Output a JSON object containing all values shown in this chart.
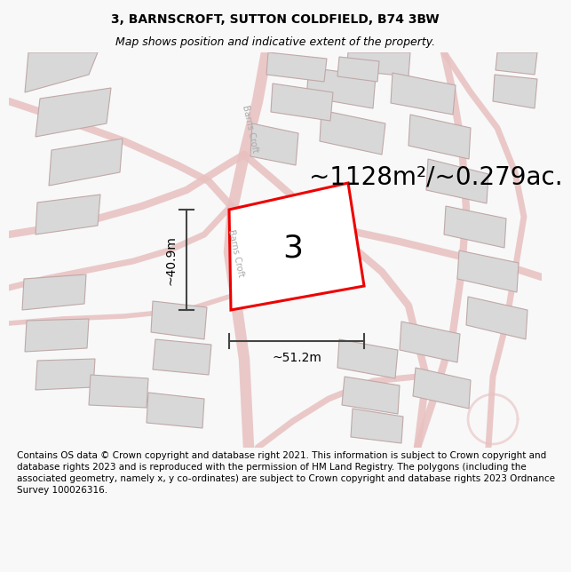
{
  "title_line1": "3, BARNSCROFT, SUTTON COLDFIELD, B74 3BW",
  "title_line2": "Map shows position and indicative extent of the property.",
  "area_text": "~1128m²/~0.279ac.",
  "label_number": "3",
  "dim_height": "~40.9m",
  "dim_width": "~51.2m",
  "street_name": "Barns Croft",
  "footer_text": "Contains OS data © Crown copyright and database right 2021. This information is subject to Crown copyright and database rights 2023 and is reproduced with the permission of HM Land Registry. The polygons (including the associated geometry, namely x, y co-ordinates) are subject to Crown copyright and database rights 2023 Ordnance Survey 100026316.",
  "bg_color": "#f8f8f8",
  "map_bg": "#f2f0f0",
  "building_fill": "#d8d8d8",
  "building_edge": "#c0a8a8",
  "road_color": "#e8c0c0",
  "highlight_fill": "#ffffff",
  "highlight_edge": "#ee0000",
  "highlight_lw": 2.2,
  "dim_color": "#444444",
  "title_fontsize": 10,
  "subtitle_fontsize": 9,
  "area_fontsize": 20,
  "label_fontsize": 26,
  "dim_fontsize": 10,
  "footer_fontsize": 7.5,
  "street_fontsize": 7
}
